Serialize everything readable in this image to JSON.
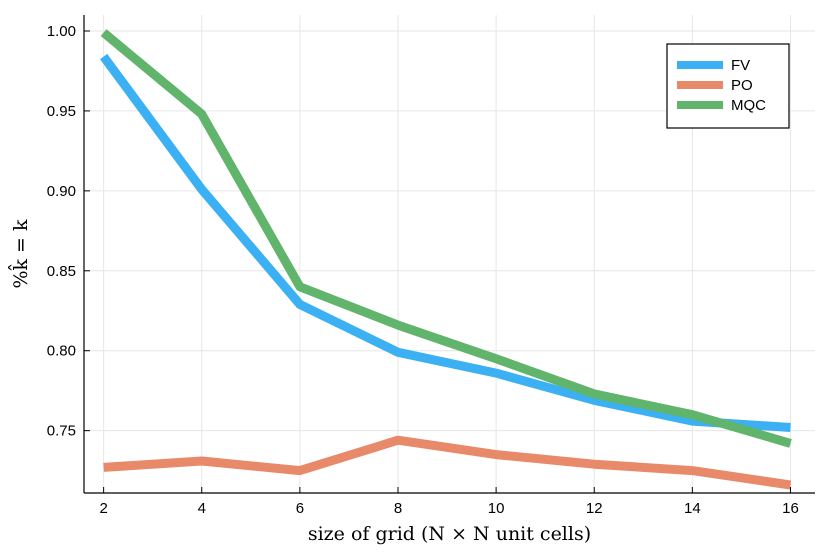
{
  "chart_data": {
    "type": "line",
    "title": "",
    "xlabel": "size of grid (N × N unit cells)",
    "ylabel": "%k̂ = k",
    "x": [
      2,
      4,
      6,
      8,
      10,
      12,
      14,
      16
    ],
    "xlim": [
      1.6,
      16.5
    ],
    "ylim": [
      0.711,
      1.01
    ],
    "x_ticks": [
      2,
      4,
      6,
      8,
      10,
      12,
      14,
      16
    ],
    "y_ticks": [
      0.75,
      0.8,
      0.85,
      0.9,
      0.95,
      1.0
    ],
    "x_tick_labels": [
      "2",
      "4",
      "6",
      "8",
      "10",
      "12",
      "14",
      "16"
    ],
    "y_tick_labels": [
      "0.75",
      "0.80",
      "0.85",
      "0.90",
      "0.95",
      "1.00"
    ],
    "grid": true,
    "legend_position": "top-right",
    "series": [
      {
        "name": "FV",
        "color": "#3bb0f2",
        "values": [
          0.984,
          0.901,
          0.829,
          0.799,
          0.786,
          0.769,
          0.756,
          0.752
        ]
      },
      {
        "name": "PO",
        "color": "#e8896a",
        "values": [
          0.727,
          0.731,
          0.725,
          0.744,
          0.735,
          0.729,
          0.725,
          0.716
        ]
      },
      {
        "name": "MQC",
        "color": "#60b46b",
        "values": [
          0.999,
          0.948,
          0.84,
          0.816,
          0.795,
          0.773,
          0.76,
          0.742
        ]
      }
    ]
  }
}
